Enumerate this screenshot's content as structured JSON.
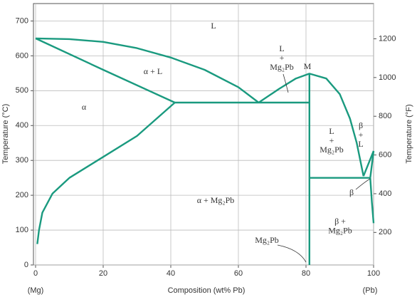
{
  "chart_data": {
    "type": "line",
    "xlabel": "Composition (wt% Pb)",
    "ylabel": "Temperature (°C)",
    "y2label": "Temperature (°F)",
    "left_end": "(Mg)",
    "right_end": "(Pb)",
    "xlim": [
      0,
      100
    ],
    "xticks": [
      0,
      20,
      40,
      60,
      80,
      100
    ],
    "ylim": [
      0,
      750
    ],
    "yticks": [
      0,
      100,
      200,
      300,
      400,
      500,
      600,
      700
    ],
    "y2lim": [
      32,
      1382
    ],
    "y2ticks": [
      200,
      400,
      600,
      800,
      1000,
      1200
    ],
    "grid": true,
    "color": "#1a9a7f",
    "series": [
      {
        "x": [
          0,
          10,
          20,
          30,
          40,
          50,
          60,
          66
        ],
        "values": [
          650,
          648,
          640,
          622,
          595,
          560,
          510,
          466
        ]
      },
      {
        "x": [
          66,
          72,
          77,
          81,
          86,
          90,
          93,
          95,
          97
        ],
        "values": [
          466,
          505,
          535,
          549,
          535,
          490,
          420,
          350,
          255
        ]
      },
      {
        "x": [
          0,
          20,
          41.2
        ],
        "values": [
          650,
          560,
          466
        ]
      },
      {
        "x": [
          41.2,
          81
        ],
        "values": [
          466,
          466
        ]
      },
      {
        "x": [
          41.2,
          30,
          20,
          10,
          5,
          2,
          1,
          0.5
        ],
        "values": [
          466,
          370,
          310,
          250,
          205,
          150,
          100,
          60
        ]
      },
      {
        "x": [
          81,
          81
        ],
        "values": [
          0,
          549
        ]
      },
      {
        "x": [
          81,
          99
        ],
        "values": [
          250,
          250
        ]
      },
      {
        "x": [
          97,
          100
        ],
        "values": [
          255,
          327
        ]
      },
      {
        "x": [
          99,
          100
        ],
        "values": [
          250,
          327
        ]
      },
      {
        "x": [
          99,
          99.5,
          100
        ],
        "values": [
          250,
          180,
          120
        ]
      }
    ],
    "annotations": [
      [
        "L"
      ],
      [
        "α + L"
      ],
      [
        "α"
      ],
      [
        "L",
        "+",
        "Mg₂Pb"
      ],
      [
        "M"
      ],
      [
        "L",
        "+",
        "Mg₂Pb"
      ],
      [
        "β",
        "+",
        "L"
      ],
      [
        "β"
      ],
      [
        "α + Mg₂Pb"
      ],
      [
        "β +",
        "Mg₂Pb"
      ],
      [
        "Mg₂Pb"
      ]
    ]
  }
}
